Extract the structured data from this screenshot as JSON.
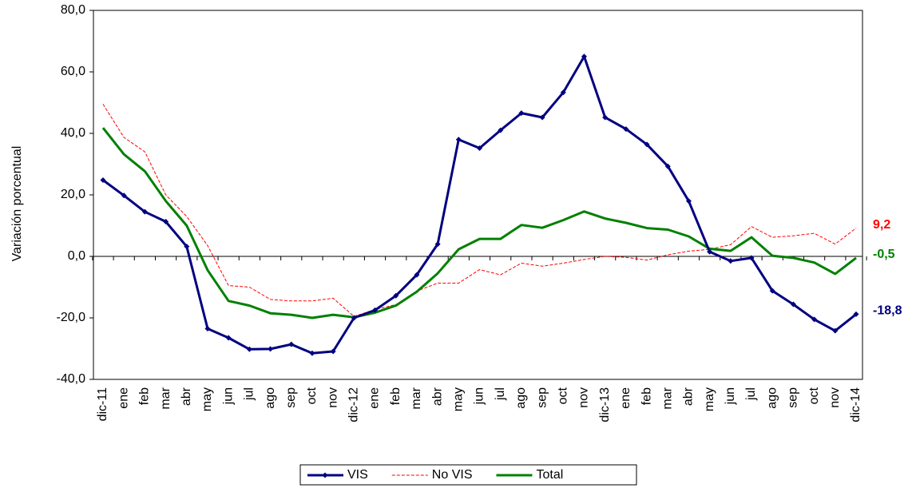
{
  "chart_data": {
    "type": "line",
    "y_label": "Variación porcentual",
    "categories": [
      "dic-11",
      "ene",
      "feb",
      "mar",
      "abr",
      "may",
      "jun",
      "jul",
      "ago",
      "sep",
      "oct",
      "nov",
      "dic-12",
      "ene",
      "feb",
      "mar",
      "abr",
      "may",
      "jun",
      "jul",
      "ago",
      "sep",
      "oct",
      "nov",
      "dic-13",
      "ene",
      "feb",
      "mar",
      "abr",
      "may",
      "jun",
      "jul",
      "ago",
      "sep",
      "oct",
      "nov",
      "dic-14"
    ],
    "series": [
      {
        "name": "VIS",
        "color": "#000080",
        "style": "solid-markers",
        "values": [
          24.8,
          19.8,
          14.5,
          11.3,
          3.2,
          -23.5,
          -26.5,
          -30.2,
          -30.1,
          -28.6,
          -31.5,
          -30.9,
          -20,
          -17.5,
          -12.8,
          -6,
          4,
          38,
          35.2,
          41,
          46.6,
          45.2,
          53.3,
          65,
          45.2,
          41.4,
          36.4,
          29.3,
          18,
          1.5,
          -1.5,
          -0.5,
          -11.2,
          -15.6,
          -20.5,
          -24.2,
          -18.8
        ],
        "value_labels": [
          null,
          null,
          null,
          null,
          null,
          null,
          null,
          null,
          null,
          null,
          null,
          null,
          null,
          null,
          null,
          null,
          null,
          null,
          null,
          null,
          null,
          null,
          null,
          null,
          null,
          null,
          null,
          null,
          null,
          null,
          null,
          null,
          null,
          null,
          null,
          null,
          "-18,8"
        ]
      },
      {
        "name": "No VIS",
        "color": "#ff0000",
        "style": "dashed",
        "values": [
          49.5,
          38.7,
          34,
          20,
          13,
          3.5,
          -9.5,
          -10,
          -14,
          -14.5,
          -14.5,
          -13.6,
          -19.5,
          -17.3,
          -15.7,
          -11.3,
          -8.7,
          -8.7,
          -4.3,
          -6,
          -2.2,
          -3.2,
          -2.2,
          -1,
          0,
          -0.3,
          -1.2,
          0.5,
          1.7,
          2.3,
          3.8,
          9.7,
          6.2,
          6.7,
          7.5,
          4,
          9.2
        ],
        "value_labels": [
          null,
          null,
          null,
          null,
          null,
          null,
          null,
          null,
          null,
          null,
          null,
          null,
          null,
          null,
          null,
          null,
          null,
          null,
          null,
          null,
          null,
          null,
          null,
          null,
          null,
          null,
          null,
          null,
          null,
          null,
          null,
          null,
          null,
          null,
          null,
          null,
          "9,2"
        ]
      },
      {
        "name": "Total",
        "color": "#008000",
        "style": "solid",
        "values": [
          41.8,
          33.2,
          27.7,
          18,
          10,
          -4.5,
          -14.5,
          -16,
          -18.5,
          -19,
          -20,
          -19,
          -19.8,
          -18.3,
          -16,
          -11.5,
          -5.5,
          2.3,
          5.7,
          5.7,
          10.2,
          9.3,
          11.8,
          14.6,
          12.3,
          10.9,
          9.2,
          8.7,
          6.5,
          2.5,
          1.8,
          6.2,
          0.2,
          -0.5,
          -2,
          -5.7,
          -0.5
        ],
        "value_labels": [
          null,
          null,
          null,
          null,
          null,
          null,
          null,
          null,
          null,
          null,
          null,
          null,
          null,
          null,
          null,
          null,
          null,
          null,
          null,
          null,
          null,
          null,
          null,
          null,
          null,
          null,
          null,
          null,
          null,
          null,
          null,
          null,
          null,
          null,
          null,
          null,
          "-0,5"
        ]
      }
    ],
    "ylim": [
      -40,
      80
    ],
    "yticks": [
      {
        "value": -40,
        "label": "-40,0"
      },
      {
        "value": -20,
        "label": "-20,0"
      },
      {
        "value": 0,
        "label": "0,0"
      },
      {
        "value": 20,
        "label": "20,0"
      },
      {
        "value": 40,
        "label": "40,0"
      },
      {
        "value": 60,
        "label": "60,0"
      },
      {
        "value": 80,
        "label": "80,0"
      }
    ],
    "grid": false,
    "legend": "bottom"
  }
}
